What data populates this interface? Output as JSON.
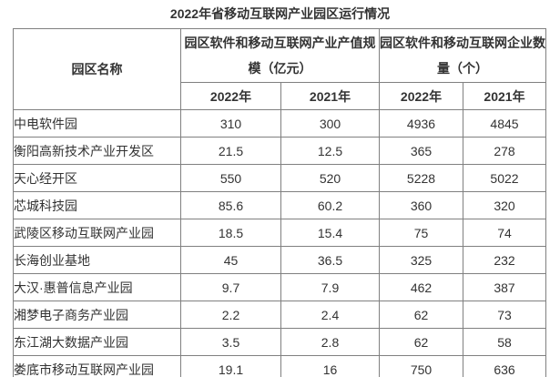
{
  "title": "2022年省移动互联网产业园区运行情况",
  "table": {
    "corner_header": "园区名称",
    "group_headers": [
      {
        "line1": "园区软件和移动互联网产业产值规",
        "line2": "模（亿元）"
      },
      {
        "line1": "园区软件和移动互联网企业数",
        "line2": "量（个）"
      }
    ],
    "year_headers": [
      "2022年",
      "2021年",
      "2022年",
      "2021年"
    ],
    "rows": [
      {
        "name": "中电软件园",
        "values": [
          "310",
          "300",
          "4936",
          "4845"
        ]
      },
      {
        "name": "衡阳高新技术产业开发区",
        "values": [
          "21.5",
          "12.5",
          "365",
          "278"
        ]
      },
      {
        "name": "天心经开区",
        "values": [
          "550",
          "520",
          "5228",
          "5022"
        ]
      },
      {
        "name": "芯城科技园",
        "values": [
          "85.6",
          "60.2",
          "360",
          "320"
        ]
      },
      {
        "name": "武陵区移动互联网产业园",
        "values": [
          "18.5",
          "15.4",
          "75",
          "74"
        ]
      },
      {
        "name": "长海创业基地",
        "values": [
          "45",
          "36.5",
          "325",
          "232"
        ]
      },
      {
        "name": "大汉·惠普信息产业园",
        "values": [
          "9.7",
          "7.9",
          "462",
          "387"
        ]
      },
      {
        "name": "湘梦电子商务产业园",
        "values": [
          "2.2",
          "2.4",
          "62",
          "73"
        ]
      },
      {
        "name": "东江湖大数据产业园",
        "values": [
          "3.5",
          "2.8",
          "62",
          "58"
        ]
      },
      {
        "name": "娄底市移动互联网产业园",
        "values": [
          "19.1",
          "16",
          "750",
          "636"
        ]
      }
    ],
    "colors": {
      "border": "#808080",
      "text": "#333333",
      "background": "#ffffff"
    }
  }
}
